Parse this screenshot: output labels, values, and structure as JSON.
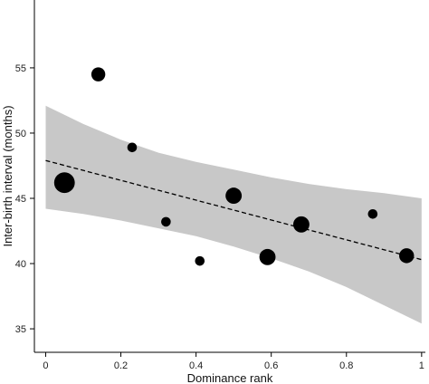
{
  "chart_data": {
    "type": "scatter",
    "title": "",
    "xlabel": "Dominance rank",
    "ylabel": "Inter-birth interval (months)",
    "xlim": [
      -0.03,
      1.01
    ],
    "ylim": [
      33.2,
      60.2
    ],
    "x_ticks": [
      0,
      0.2,
      0.4,
      0.6,
      0.8,
      1
    ],
    "x_tick_labels": [
      "0",
      "0.2",
      "0.4",
      "0.6",
      "0.8",
      "1"
    ],
    "y_ticks": [
      35,
      40,
      45,
      50,
      55
    ],
    "y_tick_labels": [
      "35",
      "40",
      "45",
      "50",
      "55"
    ],
    "grid": false,
    "point_color": "#000000",
    "band_color": "#c8c8c8",
    "points": [
      {
        "x": 0.05,
        "y": 46.2,
        "size": 3.0
      },
      {
        "x": 0.14,
        "y": 54.5,
        "size": 1.5
      },
      {
        "x": 0.23,
        "y": 48.9,
        "size": 1.0
      },
      {
        "x": 0.32,
        "y": 43.2,
        "size": 1.0
      },
      {
        "x": 0.41,
        "y": 40.2,
        "size": 1.0
      },
      {
        "x": 0.5,
        "y": 45.2,
        "size": 2.0
      },
      {
        "x": 0.59,
        "y": 40.5,
        "size": 2.0
      },
      {
        "x": 0.68,
        "y": 43.0,
        "size": 2.0
      },
      {
        "x": 0.87,
        "y": 43.8,
        "size": 1.0
      },
      {
        "x": 0.96,
        "y": 40.6,
        "size": 1.7
      }
    ],
    "trend": {
      "style": "dashed",
      "color": "#000000",
      "x": [
        0,
        1
      ],
      "y": [
        47.9,
        40.3
      ]
    },
    "confidence_band": {
      "x": [
        0,
        0.1,
        0.2,
        0.3,
        0.4,
        0.5,
        0.6,
        0.7,
        0.8,
        0.9,
        1.0
      ],
      "upper": [
        52.1,
        50.7,
        49.5,
        48.5,
        47.8,
        47.2,
        46.6,
        46.1,
        45.7,
        45.4,
        45.0
      ],
      "lower": [
        44.2,
        43.8,
        43.3,
        42.7,
        42.1,
        41.3,
        40.4,
        39.4,
        38.2,
        36.8,
        35.4
      ]
    }
  }
}
